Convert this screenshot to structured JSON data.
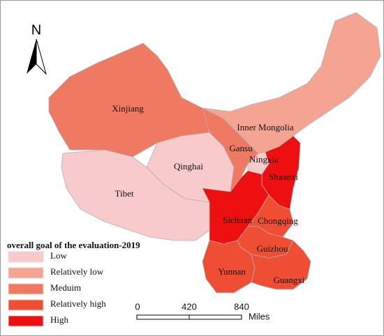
{
  "north": "N",
  "regions": [
    {
      "name": "Xinjiang",
      "class": "Meduim"
    },
    {
      "name": "Tibet",
      "class": "Low"
    },
    {
      "name": "Qinghai",
      "class": "Low"
    },
    {
      "name": "Gansu",
      "class": "Meduim"
    },
    {
      "name": "Inner Mongolia",
      "class": "Relatively low"
    },
    {
      "name": "Ningxia",
      "class": "Low"
    },
    {
      "name": "Shaanxi",
      "class": "High"
    },
    {
      "name": "Sichuan",
      "class": "High"
    },
    {
      "name": "Chongqing",
      "class": "Relatively high"
    },
    {
      "name": "Guizhou",
      "class": "Relatively high"
    },
    {
      "name": "Yunnan",
      "class": "Relatively high"
    },
    {
      "name": "Guangxi",
      "class": "Relatively high"
    }
  ],
  "legend": {
    "title": "overall goal of the evaluation-2019",
    "items": [
      {
        "label": "Low",
        "color": "#f8cacb"
      },
      {
        "label": "Relatively low",
        "color": "#f5a492"
      },
      {
        "label": "Meduim",
        "color": "#ef7a61"
      },
      {
        "label": "Relatively high",
        "color": "#f04e33"
      },
      {
        "label": "High",
        "color": "#ee1010"
      }
    ]
  },
  "scale_bar": {
    "ticks": [
      "0",
      "420",
      "840"
    ],
    "unit": "Miles"
  }
}
